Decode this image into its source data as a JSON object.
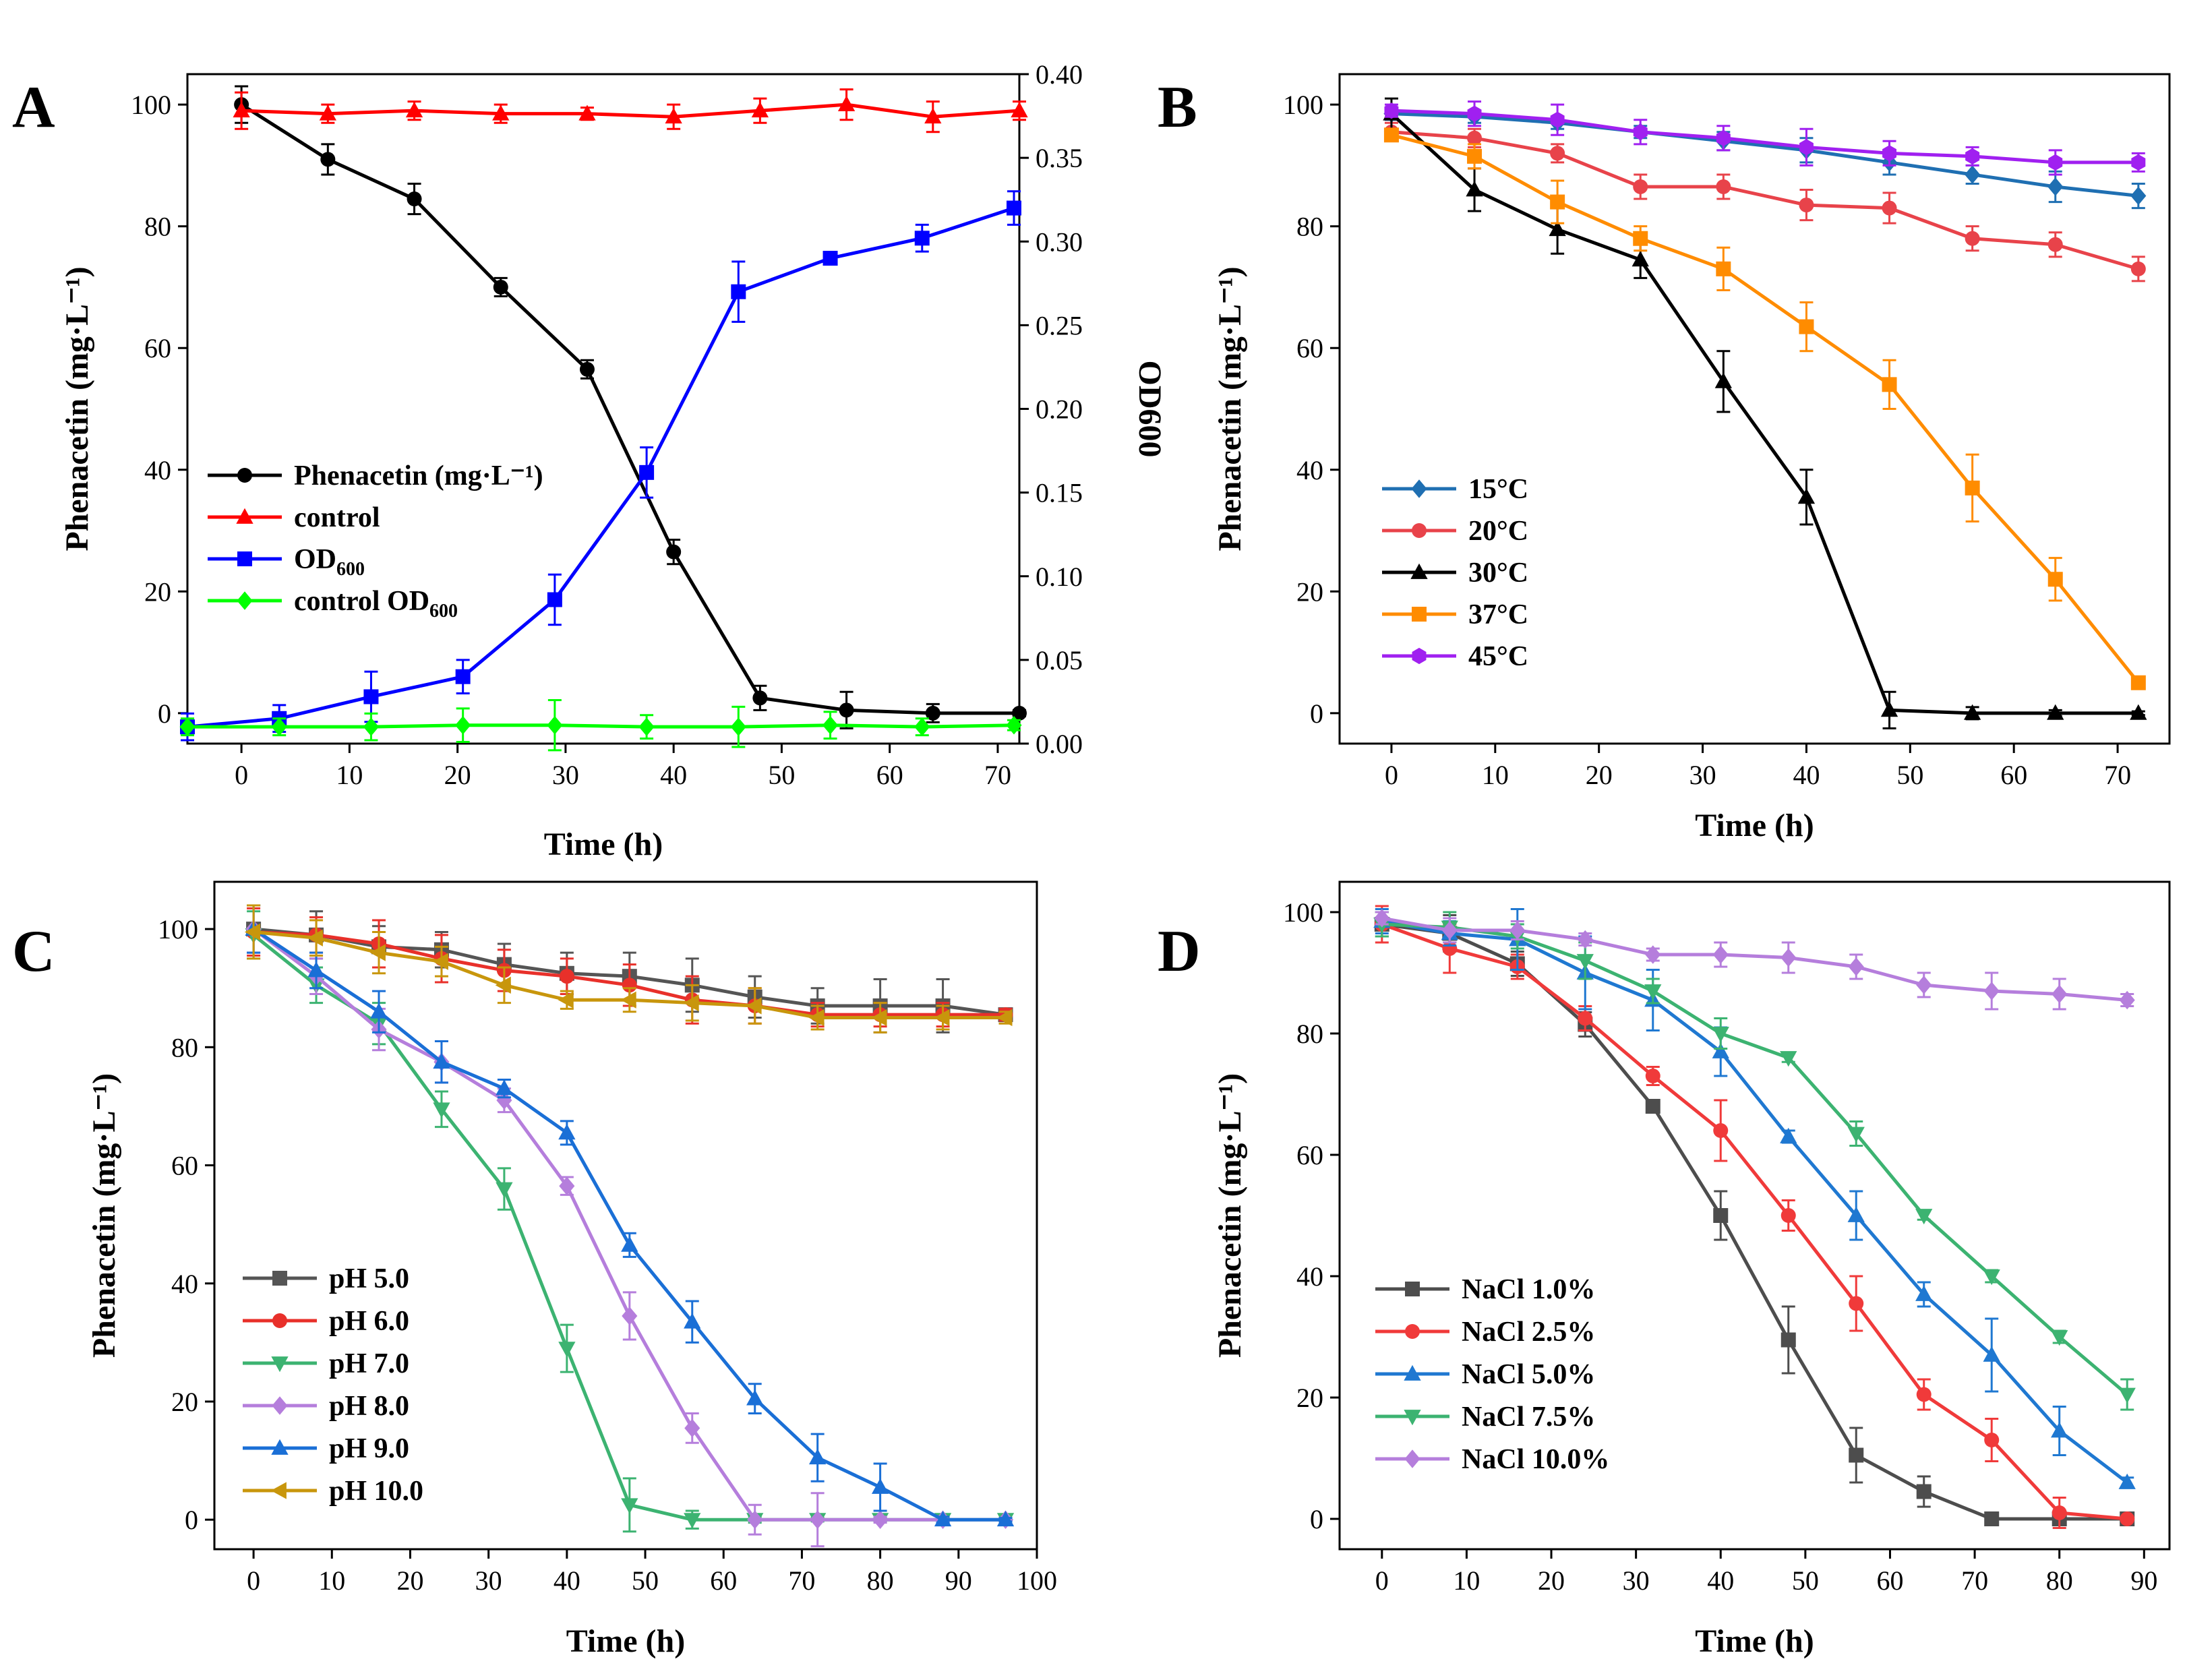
{
  "chart_data": [
    {
      "panel": "A",
      "type": "line",
      "xlabel": "Time (h)",
      "ylabel": "Phenacetin (mg·L⁻¹)",
      "y2label": "OD600",
      "xlim": [
        -5,
        72
      ],
      "ylim": [
        -5,
        105
      ],
      "y2lim": [
        0,
        0.4
      ],
      "xticks": [
        "0",
        "10",
        "20",
        "30",
        "40",
        "50",
        "60",
        "70"
      ],
      "yticks": [
        "0",
        "20",
        "40",
        "60",
        "80",
        "100"
      ],
      "y2ticks": [
        "0.00",
        "0.05",
        "0.10",
        "0.15",
        "0.20",
        "0.25",
        "0.30",
        "0.35",
        "0.40"
      ],
      "legend_position": "middle-left",
      "series": [
        {
          "name": "Phenacetin (mg·L⁻¹)",
          "color": "#000000",
          "marker": "circle",
          "axis": "left",
          "x": [
            0,
            8,
            16,
            24,
            32,
            40,
            48,
            56,
            64,
            72
          ],
          "values": [
            100,
            91,
            84.5,
            70,
            56.5,
            26.5,
            2.5,
            0.5,
            0,
            0
          ],
          "errors": [
            3,
            2.5,
            2.5,
            1.5,
            1.5,
            2,
            2,
            3,
            1.5,
            0.5
          ]
        },
        {
          "name": "control",
          "color": "#ff0000",
          "marker": "triangle-up",
          "axis": "left",
          "x": [
            0,
            8,
            16,
            24,
            32,
            40,
            48,
            56,
            64,
            72
          ],
          "values": [
            99,
            98.5,
            99,
            98.5,
            98.5,
            98,
            99,
            100,
            98,
            99
          ],
          "errors": [
            3,
            1.5,
            1.5,
            1.5,
            1,
            2,
            2,
            2.5,
            2.5,
            1.5
          ]
        },
        {
          "name": "OD600",
          "color": "#0000ff",
          "marker": "square",
          "axis": "right",
          "x": [
            -5,
            3.5,
            12,
            20.5,
            29,
            37.5,
            46,
            54.5,
            63,
            71.5
          ],
          "values": [
            0.01,
            0.015,
            0.028,
            0.04,
            0.086,
            0.162,
            0.27,
            0.29,
            0.302,
            0.32
          ],
          "errors": [
            0.008,
            0.008,
            0.015,
            0.01,
            0.015,
            0.015,
            0.018,
            0.003,
            0.008,
            0.01
          ]
        },
        {
          "name": "control OD600",
          "color": "#00ff00",
          "marker": "diamond",
          "axis": "right",
          "x": [
            -5,
            3.5,
            12,
            20.5,
            29,
            37.5,
            46,
            54.5,
            63,
            71.5
          ],
          "values": [
            0.01,
            0.01,
            0.01,
            0.011,
            0.011,
            0.01,
            0.01,
            0.011,
            0.01,
            0.011
          ],
          "errors": [
            0.005,
            0.005,
            0.008,
            0.01,
            0.015,
            0.007,
            0.012,
            0.008,
            0.005,
            0.003
          ]
        }
      ]
    },
    {
      "panel": "B",
      "type": "line",
      "xlabel": "Time (h)",
      "ylabel": "Phenacetin (mg·L⁻¹)",
      "xlim": [
        -5,
        75
      ],
      "ylim": [
        -5,
        105
      ],
      "xticks": [
        "0",
        "10",
        "20",
        "30",
        "40",
        "50",
        "60",
        "70"
      ],
      "yticks": [
        "0",
        "20",
        "40",
        "60",
        "80",
        "100"
      ],
      "legend_position": "middle-left",
      "series": [
        {
          "name": "15°C",
          "color": "#1f6fb2",
          "marker": "diamond",
          "x": [
            0,
            8,
            16,
            24,
            32,
            40,
            48,
            56,
            64,
            72
          ],
          "values": [
            98.5,
            98,
            97,
            95.5,
            94,
            92.5,
            90.5,
            88.5,
            86.5,
            85
          ],
          "errors": [
            1,
            1,
            1,
            1,
            1.5,
            2,
            2,
            1.5,
            2.5,
            2
          ]
        },
        {
          "name": "20°C",
          "color": "#e8434a",
          "marker": "circle",
          "x": [
            0,
            8,
            16,
            24,
            32,
            40,
            48,
            56,
            64,
            72
          ],
          "values": [
            95.5,
            94.5,
            92,
            86.5,
            86.5,
            83.5,
            83,
            78,
            77,
            73
          ],
          "errors": [
            1.5,
            1.5,
            1.5,
            2,
            2,
            2.5,
            2.5,
            2,
            2,
            2
          ]
        },
        {
          "name": "30°C",
          "color": "#000000",
          "marker": "triangle-up",
          "x": [
            0,
            8,
            16,
            24,
            32,
            40,
            48,
            56,
            64,
            72
          ],
          "values": [
            98.5,
            86,
            79.5,
            74.5,
            54.5,
            35.5,
            0.5,
            0,
            0,
            0
          ],
          "errors": [
            2.5,
            3.5,
            4,
            3,
            5,
            4.5,
            3,
            1,
            0.5,
            0.3
          ]
        },
        {
          "name": "37°C",
          "color": "#ff8c00",
          "marker": "square",
          "x": [
            0,
            8,
            16,
            24,
            32,
            40,
            48,
            56,
            64,
            72
          ],
          "values": [
            95,
            91.5,
            84,
            78,
            73,
            63.5,
            54,
            37,
            22,
            5
          ],
          "errors": [
            1,
            2,
            3.5,
            2,
            3.5,
            4,
            4,
            5.5,
            3.5,
            0.5
          ]
        },
        {
          "name": "45°C",
          "color": "#a020f0",
          "marker": "hexagon",
          "x": [
            0,
            8,
            16,
            24,
            32,
            40,
            48,
            56,
            64,
            72
          ],
          "values": [
            99,
            98.5,
            97.5,
            95.5,
            94.5,
            93,
            92,
            91.5,
            90.5,
            90.5
          ],
          "errors": [
            1,
            2,
            2.5,
            2,
            2,
            3,
            2,
            1.5,
            2,
            1.5
          ]
        }
      ]
    },
    {
      "panel": "C",
      "type": "line",
      "xlabel": "Time (h)",
      "ylabel": "Phenacetin (mg·L⁻¹)",
      "xlim": [
        -5,
        100
      ],
      "ylim": [
        -5,
        108
      ],
      "xticks": [
        "0",
        "10",
        "20",
        "30",
        "40",
        "50",
        "60",
        "70",
        "80",
        "90",
        "100"
      ],
      "yticks": [
        "0",
        "20",
        "40",
        "60",
        "80",
        "100"
      ],
      "legend_position": "lower-left",
      "series": [
        {
          "name": "pH 5.0",
          "color": "#555555",
          "marker": "square",
          "x": [
            0,
            8,
            16,
            24,
            32,
            40,
            48,
            56,
            64,
            72,
            80,
            88,
            96
          ],
          "values": [
            100,
            99,
            97,
            96.5,
            94,
            92.5,
            92,
            90.5,
            88.5,
            87,
            87,
            87,
            85.5
          ],
          "errors": [
            4,
            4,
            3.5,
            3,
            3.5,
            3.5,
            4,
            4.5,
            3.5,
            3,
            4.5,
            4.5,
            1
          ]
        },
        {
          "name": "pH 6.0",
          "color": "#e8302a",
          "marker": "circle",
          "x": [
            0,
            8,
            16,
            24,
            32,
            40,
            48,
            56,
            64,
            72,
            80,
            88,
            96
          ],
          "values": [
            99.5,
            99,
            97.5,
            95,
            93,
            92,
            90.5,
            88,
            87,
            85.5,
            85.5,
            85.5,
            85.5
          ],
          "errors": [
            4,
            3,
            4,
            4,
            3.5,
            3,
            3.5,
            4,
            3,
            2,
            2,
            2,
            1
          ]
        },
        {
          "name": "pH 7.0",
          "color": "#3cb371",
          "marker": "triangle-down",
          "x": [
            0,
            8,
            16,
            24,
            32,
            40,
            48,
            56,
            64,
            72,
            80,
            88,
            96
          ],
          "values": [
            99,
            90.5,
            84,
            69.5,
            56,
            29,
            2.5,
            0,
            0,
            0,
            0,
            0,
            0
          ],
          "errors": [
            4,
            3,
            3.5,
            3,
            3.5,
            4,
            4.5,
            1.5,
            0.5,
            0.3,
            0.3,
            0.3,
            0.3
          ]
        },
        {
          "name": "pH 8.0",
          "color": "#b57edc",
          "marker": "diamond",
          "x": [
            0,
            8,
            16,
            24,
            32,
            40,
            48,
            56,
            64,
            72,
            80,
            88,
            96
          ],
          "values": [
            100,
            92,
            83,
            77.5,
            71,
            56.5,
            34.5,
            15.5,
            0,
            0,
            0,
            0,
            0
          ],
          "errors": [
            4,
            3,
            3.5,
            3.5,
            2,
            1.5,
            4,
            2.5,
            2.5,
            4.5,
            0.5,
            0.3,
            0.3
          ]
        },
        {
          "name": "pH 9.0",
          "color": "#1a6fd6",
          "marker": "triangle-up",
          "x": [
            0,
            8,
            16,
            24,
            32,
            40,
            48,
            56,
            64,
            72,
            80,
            88,
            96
          ],
          "values": [
            100,
            93,
            86,
            77.5,
            73,
            65.5,
            46.5,
            33.5,
            20.5,
            10.5,
            5.5,
            0,
            0
          ],
          "errors": [
            4,
            3,
            3.5,
            3.5,
            1.5,
            2,
            2,
            3.5,
            2.5,
            4,
            4,
            0.5,
            0.3
          ]
        },
        {
          "name": "pH 10.0",
          "color": "#c8960c",
          "marker": "triangle-left",
          "x": [
            0,
            8,
            16,
            24,
            32,
            40,
            48,
            56,
            64,
            72,
            80,
            88,
            96
          ],
          "values": [
            99.5,
            98.5,
            96,
            94.5,
            90.5,
            88,
            88,
            87.5,
            87,
            85,
            85,
            85,
            85
          ],
          "errors": [
            4.5,
            3,
            3.5,
            2.5,
            3,
            1.5,
            2,
            3,
            3,
            2,
            2.5,
            2,
            1
          ]
        }
      ]
    },
    {
      "panel": "D",
      "type": "line",
      "xlabel": "Time (h)",
      "ylabel": "Phenacetin (mg·L⁻¹)",
      "xlim": [
        -5,
        93
      ],
      "ylim": [
        -5,
        105
      ],
      "xticks": [
        "0",
        "10",
        "20",
        "30",
        "40",
        "50",
        "60",
        "70",
        "80",
        "90"
      ],
      "yticks": [
        "0",
        "20",
        "40",
        "60",
        "80",
        "100"
      ],
      "legend_position": "lower-left",
      "series": [
        {
          "name": "NaCl 1.0%",
          "color": "#4d4d4d",
          "marker": "square",
          "x": [
            0,
            8,
            16,
            24,
            32,
            40,
            48,
            56,
            64,
            72,
            80,
            88
          ],
          "values": [
            98,
            96.5,
            91.5,
            81.5,
            68,
            50,
            29.5,
            10.5,
            4.5,
            0,
            0,
            0
          ],
          "errors": [
            2,
            3,
            2,
            2,
            1,
            4,
            5.5,
            4.5,
            2.5,
            0.5,
            0.5,
            0.3
          ]
        },
        {
          "name": "NaCl 2.5%",
          "color": "#f03a3a",
          "marker": "circle",
          "x": [
            0,
            8,
            16,
            24,
            32,
            40,
            48,
            56,
            64,
            72,
            80,
            88
          ],
          "values": [
            98,
            94,
            91,
            82.5,
            73,
            64,
            50,
            35.5,
            20.5,
            13,
            1,
            0
          ],
          "errors": [
            3,
            4,
            2,
            2,
            1.5,
            5,
            2.5,
            4.5,
            2.5,
            3.5,
            2.5,
            0.3
          ]
        },
        {
          "name": "NaCl 5.0%",
          "color": "#1f78d1",
          "marker": "triangle-up",
          "x": [
            0,
            8,
            16,
            24,
            32,
            40,
            48,
            56,
            64,
            72,
            80,
            88
          ],
          "values": [
            98.5,
            96.5,
            95.5,
            90,
            85.5,
            77,
            63,
            50,
            37,
            27,
            14.5,
            6
          ],
          "errors": [
            2,
            2,
            5,
            6,
            5,
            4,
            1,
            4,
            2,
            6,
            4,
            0.8
          ]
        },
        {
          "name": "NaCl 7.5%",
          "color": "#3cb371",
          "marker": "triangle-down",
          "x": [
            0,
            8,
            16,
            24,
            32,
            40,
            48,
            56,
            64,
            72,
            80,
            88
          ],
          "values": [
            98,
            97.5,
            96,
            92,
            87,
            80,
            76,
            63.5,
            50,
            40,
            30,
            20.5
          ],
          "errors": [
            2,
            2.5,
            2,
            3,
            2,
            2.5,
            0.7,
            2,
            0.7,
            1,
            1,
            2.5
          ]
        },
        {
          "name": "NaCl 10.0%",
          "color": "#b57edc",
          "marker": "diamond",
          "x": [
            0,
            8,
            16,
            24,
            32,
            40,
            48,
            56,
            64,
            72,
            80,
            88
          ],
          "values": [
            99,
            97,
            97,
            95.5,
            93,
            93,
            92.5,
            91,
            88,
            87,
            86.5,
            85.5
          ],
          "errors": [
            1,
            2,
            1.5,
            1,
            1,
            2,
            2.5,
            2,
            2,
            3,
            2.5,
            1
          ]
        }
      ]
    }
  ]
}
